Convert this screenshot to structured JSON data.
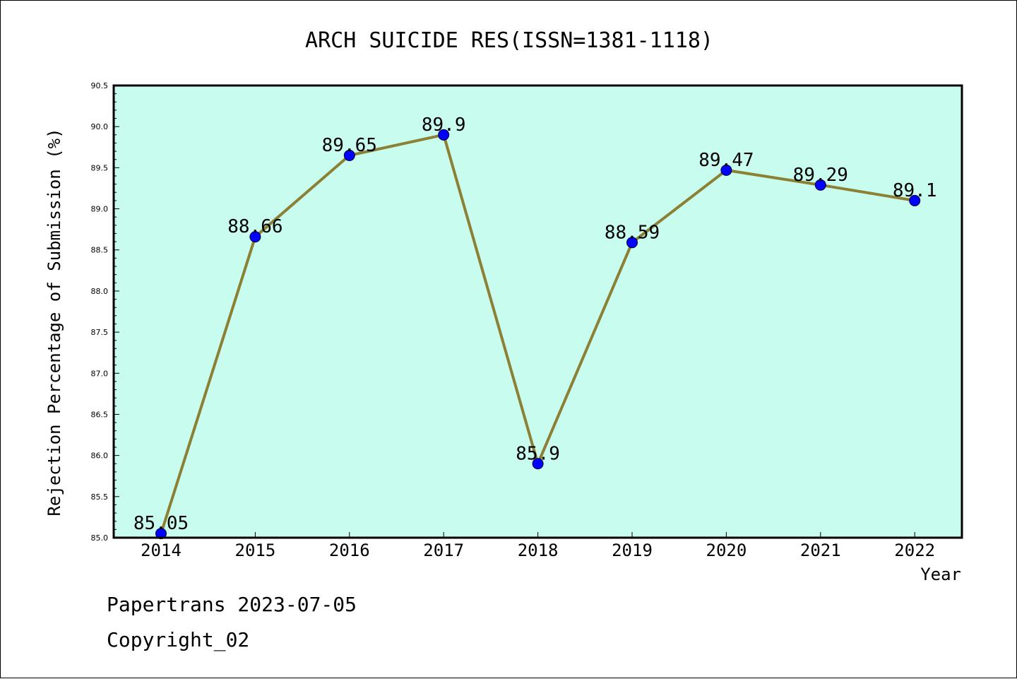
{
  "chart_data": {
    "type": "line",
    "title": "ARCH SUICIDE RES(ISSN=1381-1118)",
    "xlabel": "Year",
    "ylabel": "Rejection Percentage of Submission (%)",
    "categories": [
      "2014",
      "2015",
      "2016",
      "2017",
      "2018",
      "2019",
      "2020",
      "2021",
      "2022"
    ],
    "values": [
      85.05,
      88.66,
      89.65,
      89.9,
      85.9,
      88.59,
      89.47,
      89.29,
      89.1
    ],
    "data_labels": [
      "85.05",
      "88.66",
      "89.65",
      "89.9",
      "85.9",
      "88.59",
      "89.47",
      "89.29",
      "89.1"
    ],
    "ylim": [
      85.0,
      90.5
    ],
    "yticks": [
      "85.0",
      "85.5",
      "86.0",
      "86.5",
      "87.0",
      "87.5",
      "88.0",
      "88.5",
      "89.0",
      "89.5",
      "90.0",
      "90.5"
    ],
    "grid": false,
    "colors": {
      "plot_background": "#c8fcee",
      "line": "#8b8034",
      "marker": "#0000ff"
    }
  },
  "footer": {
    "line1": "Papertrans 2023-07-05",
    "line2": "Copyright_02"
  }
}
